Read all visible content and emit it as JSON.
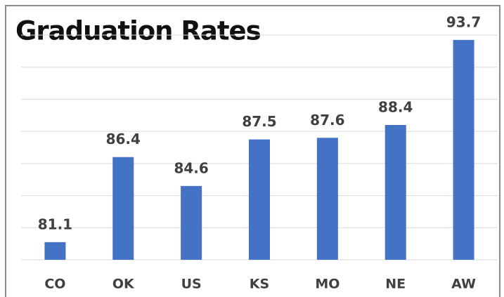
{
  "chart_data": {
    "type": "bar",
    "title": "Graduation Rates",
    "categories": [
      "CO",
      "OK",
      "US",
      "KS",
      "MO",
      "NE",
      "AW"
    ],
    "values": [
      81.1,
      86.4,
      84.6,
      87.5,
      87.6,
      88.4,
      93.7
    ],
    "color": "#4472c4",
    "ylim": [
      80,
      94
    ],
    "yticks": [
      80,
      82,
      84,
      86,
      88,
      90,
      92,
      94
    ],
    "grid": true
  }
}
